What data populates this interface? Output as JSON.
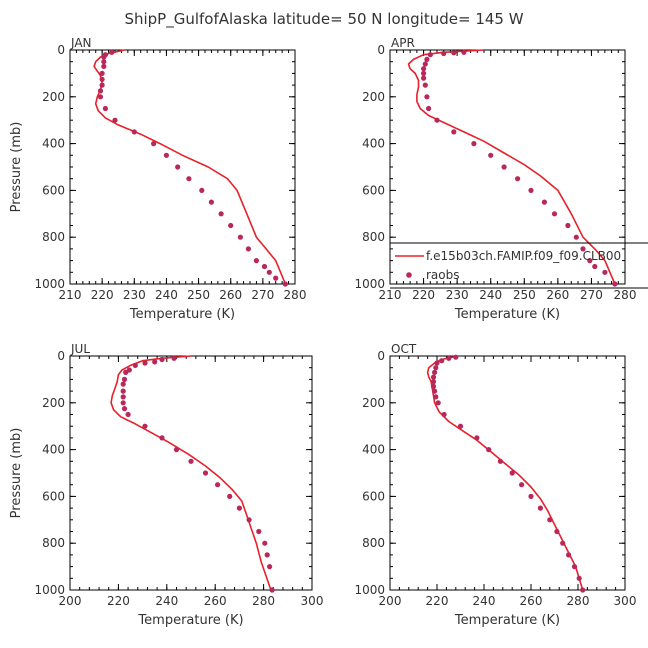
{
  "title": "ShipP_GulfofAlaska  latitude= 50 N longitude= 145 W",
  "colors": {
    "model": "#e8202a",
    "obs": "#b8285a"
  },
  "legend": {
    "model_label": "f.e15b03ch.FAMIP.f09_f09.CLB00",
    "obs_label": "raobs"
  },
  "chart_data": [
    {
      "type": "line",
      "panel": "JAN",
      "xlabel": "Temperature (K)",
      "ylabel": "Pressure (mb)",
      "xlim": [
        210,
        280
      ],
      "ylim": [
        1000,
        0
      ],
      "xticks": [
        210,
        220,
        230,
        240,
        250,
        260,
        270,
        280
      ],
      "yticks": [
        0,
        200,
        400,
        600,
        800,
        1000
      ],
      "model": {
        "temperature": [
          227,
          222,
          219.5,
          218,
          217.5,
          218.5,
          219.5,
          220,
          219.5,
          218.5,
          218,
          218.8,
          221,
          225,
          232,
          238,
          245,
          253,
          259,
          262,
          265,
          268,
          271,
          274,
          277
        ],
        "pressure": [
          0,
          15,
          30,
          50,
          70,
          90,
          110,
          140,
          170,
          200,
          230,
          260,
          290,
          320,
          360,
          400,
          450,
          500,
          550,
          600,
          700,
          800,
          850,
          900,
          1000
        ]
      },
      "obs": {
        "temperature": [
          223,
          221,
          220.5,
          220.5,
          220.5,
          220,
          220,
          220,
          219.5,
          219.5,
          221,
          224,
          230,
          236,
          240,
          243.5,
          247,
          251,
          254,
          257,
          260,
          263,
          265.5,
          268,
          270.5,
          272,
          274,
          277
        ],
        "pressure": [
          10,
          20,
          30,
          50,
          70,
          100,
          125,
          150,
          175,
          200,
          250,
          300,
          350,
          400,
          450,
          500,
          550,
          600,
          650,
          700,
          750,
          800,
          850,
          900,
          925,
          950,
          975,
          1000
        ]
      }
    },
    {
      "type": "line",
      "panel": "APR",
      "xlabel": "Temperature (K)",
      "ylabel": "",
      "xlim": [
        210,
        280
      ],
      "ylim": [
        1000,
        0
      ],
      "xticks": [
        210,
        220,
        230,
        240,
        250,
        260,
        270,
        280
      ],
      "yticks": [
        0,
        200,
        400,
        600,
        800,
        1000
      ],
      "model": {
        "temperature": [
          238,
          226,
          220,
          217,
          215.5,
          216,
          217.5,
          218.5,
          218.5,
          218,
          218,
          219,
          221.5,
          226,
          232,
          238,
          244,
          250,
          255,
          260,
          264,
          267.5,
          271,
          274,
          277
        ],
        "pressure": [
          0,
          10,
          20,
          40,
          60,
          80,
          100,
          130,
          160,
          190,
          220,
          250,
          280,
          310,
          350,
          390,
          440,
          490,
          540,
          600,
          700,
          800,
          850,
          900,
          1000
        ]
      },
      "obs": {
        "temperature": [
          232,
          229,
          226,
          222,
          221,
          220.5,
          220,
          220,
          220,
          220.5,
          221,
          221.5,
          224,
          229,
          235,
          240,
          244,
          248,
          252,
          256,
          259,
          263,
          265.5,
          267.5,
          269.5,
          271,
          274,
          277
        ],
        "pressure": [
          10,
          12,
          15,
          20,
          40,
          60,
          80,
          100,
          120,
          150,
          200,
          250,
          300,
          350,
          400,
          450,
          500,
          550,
          600,
          650,
          700,
          750,
          800,
          850,
          900,
          925,
          950,
          1000
        ]
      }
    },
    {
      "type": "line",
      "panel": "JUL",
      "xlabel": "Temperature (K)",
      "ylabel": "Pressure (mb)",
      "xlim": [
        200,
        300
      ],
      "ylim": [
        1000,
        0
      ],
      "xticks": [
        200,
        220,
        240,
        260,
        280,
        300
      ],
      "yticks": [
        0,
        200,
        400,
        600,
        800,
        1000
      ],
      "model": {
        "temperature": [
          250,
          238,
          230,
          225,
          221.5,
          220,
          219.5,
          218.5,
          217.5,
          217,
          218,
          221,
          227,
          234,
          241,
          249,
          256,
          262,
          267,
          271,
          273,
          275,
          277,
          279,
          283
        ],
        "pressure": [
          0,
          10,
          20,
          40,
          60,
          80,
          110,
          140,
          170,
          200,
          230,
          260,
          290,
          330,
          370,
          420,
          470,
          520,
          570,
          620,
          680,
          740,
          800,
          880,
          1000
        ]
      },
      "obs": {
        "temperature": [
          243,
          238,
          235,
          231,
          227,
          224.5,
          223,
          222.5,
          222,
          222,
          222,
          222,
          222.5,
          224,
          231,
          238,
          244,
          250,
          256,
          261,
          266,
          270,
          274,
          278,
          280.5,
          281.5,
          282.5,
          283.5
        ],
        "pressure": [
          10,
          15,
          25,
          30,
          40,
          60,
          70,
          100,
          120,
          150,
          175,
          200,
          225,
          250,
          300,
          350,
          400,
          450,
          500,
          550,
          600,
          650,
          700,
          750,
          800,
          850,
          900,
          1000
        ]
      }
    },
    {
      "type": "line",
      "panel": "OCT",
      "xlabel": "Temperature (K)",
      "ylabel": "",
      "xlim": [
        200,
        300
      ],
      "ylim": [
        1000,
        0
      ],
      "xticks": [
        200,
        220,
        240,
        260,
        280,
        300
      ],
      "yticks": [
        0,
        200,
        400,
        600,
        800,
        1000
      ],
      "model": {
        "temperature": [
          229,
          222,
          219,
          216.5,
          216,
          216.5,
          217.5,
          218,
          218.5,
          219,
          221,
          225,
          231,
          237,
          243,
          249,
          255,
          260,
          264,
          267,
          270,
          273,
          276,
          279,
          282
        ],
        "pressure": [
          0,
          15,
          30,
          50,
          70,
          90,
          110,
          140,
          170,
          200,
          240,
          280,
          320,
          360,
          410,
          460,
          510,
          560,
          610,
          660,
          720,
          780,
          840,
          900,
          1000
        ]
      },
      "obs": {
        "temperature": [
          228,
          225,
          222,
          220,
          219.5,
          219,
          218.5,
          218.5,
          218.5,
          219,
          219.5,
          220.5,
          223,
          230,
          237,
          242,
          247,
          252,
          256,
          260,
          264,
          268,
          271,
          273.5,
          276,
          278.5,
          280.5,
          282
        ],
        "pressure": [
          5,
          10,
          20,
          30,
          50,
          70,
          90,
          110,
          130,
          150,
          175,
          200,
          250,
          300,
          350,
          400,
          450,
          500,
          550,
          600,
          650,
          700,
          750,
          800,
          850,
          900,
          950,
          1000
        ]
      }
    }
  ]
}
